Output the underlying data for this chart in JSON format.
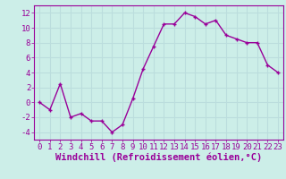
{
  "x": [
    0,
    1,
    2,
    3,
    4,
    5,
    6,
    7,
    8,
    9,
    10,
    11,
    12,
    13,
    14,
    15,
    16,
    17,
    18,
    19,
    20,
    21,
    22,
    23
  ],
  "y": [
    0,
    -1,
    2.5,
    -2,
    -1.5,
    -2.5,
    -2.5,
    -4,
    -3,
    0.5,
    4.5,
    7.5,
    10.5,
    10.5,
    12,
    11.5,
    10.5,
    11,
    9,
    8.5,
    8,
    8,
    5,
    4
  ],
  "line_color": "#990099",
  "marker_color": "#990099",
  "bg_color": "#cceee8",
  "grid_color": "#bbdddd",
  "xlabel": "Windchill (Refroidissement éolien,°C)",
  "xlabel_color": "#990099",
  "ylim": [
    -5,
    13
  ],
  "xlim": [
    -0.5,
    23.5
  ],
  "yticks": [
    -4,
    -2,
    0,
    2,
    4,
    6,
    8,
    10,
    12
  ],
  "xticks": [
    0,
    1,
    2,
    3,
    4,
    5,
    6,
    7,
    8,
    9,
    10,
    11,
    12,
    13,
    14,
    15,
    16,
    17,
    18,
    19,
    20,
    21,
    22,
    23
  ],
  "tick_color": "#990099",
  "tick_labelsize": 6.5,
  "xlabel_fontsize": 7.5,
  "linewidth": 1.0,
  "markersize": 2.5
}
